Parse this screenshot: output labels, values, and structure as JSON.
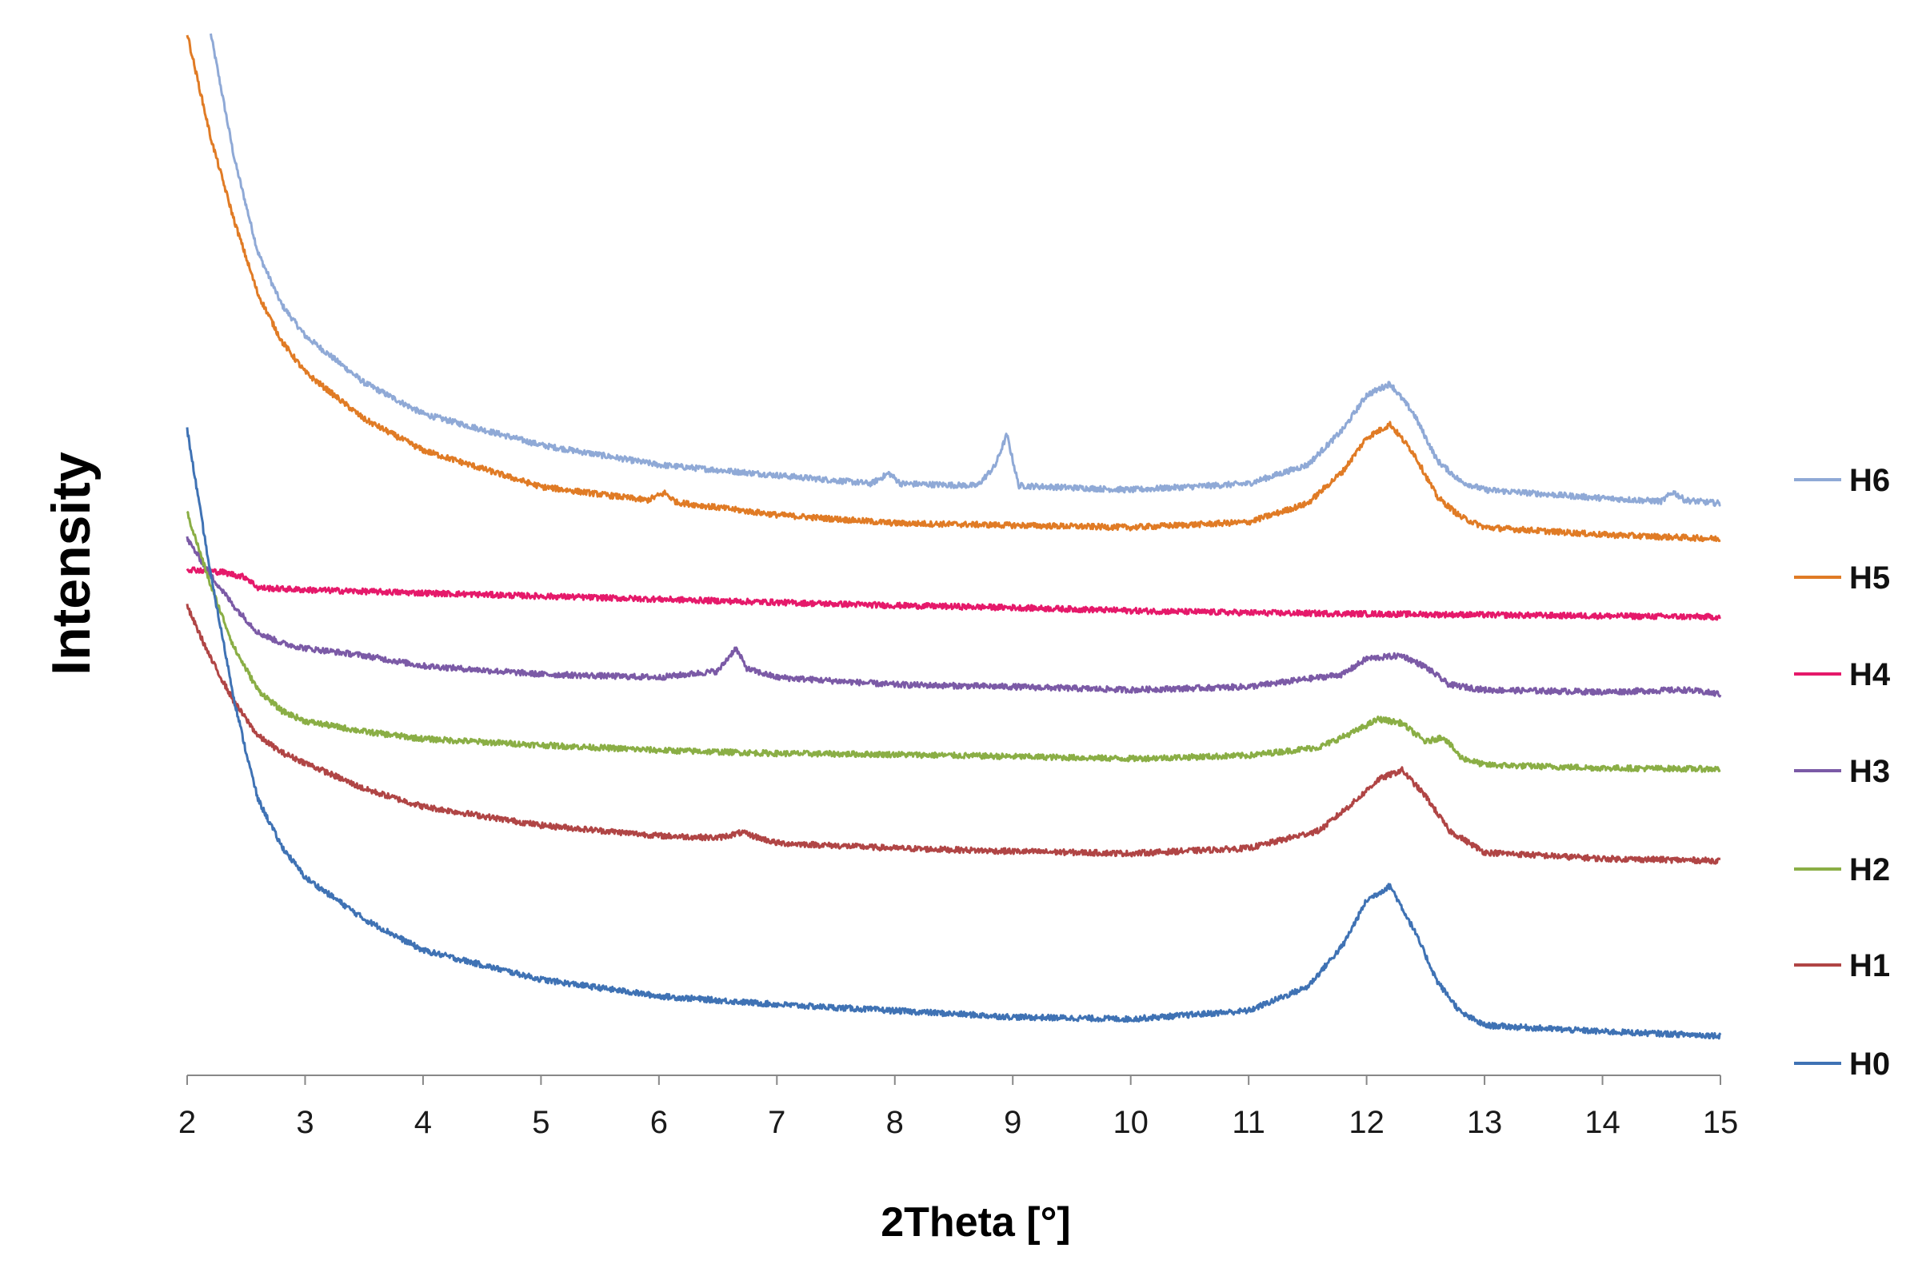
{
  "chart_data": {
    "type": "line",
    "title": "",
    "xlabel": "2Theta [°]",
    "ylabel": "Intensity",
    "xlim": [
      2,
      15
    ],
    "ylim": [
      0,
      100
    ],
    "x_ticks": [
      2,
      3,
      4,
      5,
      6,
      7,
      8,
      9,
      10,
      11,
      12,
      13,
      14,
      15
    ],
    "y_ticks_shown": false,
    "grid": false,
    "legend": "right",
    "series": [
      {
        "name": "H6",
        "color": "#8fa9d6",
        "points": [
          [
            2.2,
            100
          ],
          [
            2.4,
            88
          ],
          [
            2.6,
            79
          ],
          [
            2.8,
            74
          ],
          [
            3.0,
            71
          ],
          [
            3.5,
            66.5
          ],
          [
            4,
            63.5
          ],
          [
            5,
            60.5
          ],
          [
            6,
            58.6
          ],
          [
            7,
            57.6
          ],
          [
            7.8,
            56.8
          ],
          [
            7.95,
            57.8
          ],
          [
            8.05,
            56.8
          ],
          [
            8.7,
            56.6
          ],
          [
            8.85,
            58.5
          ],
          [
            8.95,
            61.5
          ],
          [
            9.05,
            56.6
          ],
          [
            10,
            56.2
          ],
          [
            11,
            56.8
          ],
          [
            11.5,
            58.6
          ],
          [
            11.8,
            62
          ],
          [
            12.0,
            65.3
          ],
          [
            12.2,
            66.4
          ],
          [
            12.4,
            63.5
          ],
          [
            12.6,
            59
          ],
          [
            12.8,
            57
          ],
          [
            13,
            56.2
          ],
          [
            14,
            55.4
          ],
          [
            14.5,
            55.1
          ],
          [
            14.6,
            56
          ],
          [
            14.7,
            55.2
          ],
          [
            15,
            54.9
          ]
        ]
      },
      {
        "name": "H5",
        "color": "#e07b25",
        "points": [
          [
            2.0,
            100
          ],
          [
            2.2,
            90
          ],
          [
            2.4,
            82
          ],
          [
            2.6,
            75
          ],
          [
            2.8,
            70.5
          ],
          [
            3.0,
            67.5
          ],
          [
            3.5,
            63
          ],
          [
            4,
            60
          ],
          [
            5,
            56.5
          ],
          [
            5.9,
            55.2
          ],
          [
            6.05,
            55.9
          ],
          [
            6.15,
            55
          ],
          [
            7,
            53.8
          ],
          [
            8,
            53
          ],
          [
            9,
            52.8
          ],
          [
            10,
            52.6
          ],
          [
            11,
            53.1
          ],
          [
            11.5,
            54.9
          ],
          [
            11.8,
            58
          ],
          [
            12.0,
            61.2
          ],
          [
            12.2,
            62.5
          ],
          [
            12.4,
            59.7
          ],
          [
            12.6,
            55.5
          ],
          [
            12.8,
            53.6
          ],
          [
            13,
            52.6
          ],
          [
            14,
            51.9
          ],
          [
            15,
            51.5
          ]
        ]
      },
      {
        "name": "H4",
        "color": "#e5196a",
        "points": [
          [
            2.0,
            48.6
          ],
          [
            2.3,
            48.3
          ],
          [
            2.5,
            47.8
          ],
          [
            2.6,
            46.8
          ],
          [
            3.0,
            46.6
          ],
          [
            4,
            46.3
          ],
          [
            5,
            46
          ],
          [
            6,
            45.7
          ],
          [
            7,
            45.4
          ],
          [
            8,
            45.1
          ],
          [
            9,
            44.9
          ],
          [
            10,
            44.6
          ],
          [
            11,
            44.4
          ],
          [
            12,
            44.3
          ],
          [
            13,
            44.2
          ],
          [
            14,
            44.1
          ],
          [
            15,
            44.0
          ]
        ]
      },
      {
        "name": "H3",
        "color": "#7b5aa6",
        "points": [
          [
            2.0,
            51.5
          ],
          [
            2.2,
            48
          ],
          [
            2.4,
            45
          ],
          [
            2.6,
            42.5
          ],
          [
            2.8,
            41.5
          ],
          [
            3.0,
            41
          ],
          [
            3.5,
            40.3
          ],
          [
            4,
            39.3
          ],
          [
            5,
            38.5
          ],
          [
            6,
            38.2
          ],
          [
            6.5,
            38.8
          ],
          [
            6.65,
            41
          ],
          [
            6.75,
            39
          ],
          [
            7.0,
            38.2
          ],
          [
            8,
            37.5
          ],
          [
            9,
            37.3
          ],
          [
            10,
            37
          ],
          [
            11,
            37.3
          ],
          [
            11.8,
            38.5
          ],
          [
            12.0,
            40
          ],
          [
            12.3,
            40.3
          ],
          [
            12.5,
            39.2
          ],
          [
            12.7,
            37.5
          ],
          [
            13,
            37
          ],
          [
            14,
            36.8
          ],
          [
            14.7,
            37
          ],
          [
            15,
            36.6
          ]
        ]
      },
      {
        "name": "H2",
        "color": "#8aae45",
        "points": [
          [
            2.0,
            54
          ],
          [
            2.2,
            47
          ],
          [
            2.4,
            41
          ],
          [
            2.6,
            37
          ],
          [
            2.8,
            35
          ],
          [
            3.0,
            34
          ],
          [
            3.5,
            33
          ],
          [
            4,
            32.3
          ],
          [
            5,
            31.7
          ],
          [
            6,
            31.2
          ],
          [
            7,
            30.9
          ],
          [
            8,
            30.8
          ],
          [
            9,
            30.6
          ],
          [
            10,
            30.4
          ],
          [
            11,
            30.7
          ],
          [
            11.6,
            31.5
          ],
          [
            11.9,
            33
          ],
          [
            12.1,
            34.2
          ],
          [
            12.3,
            33.8
          ],
          [
            12.5,
            32
          ],
          [
            12.65,
            32.5
          ],
          [
            12.8,
            30.5
          ],
          [
            13,
            29.8
          ],
          [
            14,
            29.5
          ],
          [
            15,
            29.4
          ]
        ]
      },
      {
        "name": "H1",
        "color": "#b04545",
        "points": [
          [
            2.0,
            45
          ],
          [
            2.2,
            40
          ],
          [
            2.4,
            35.8
          ],
          [
            2.6,
            32.6
          ],
          [
            2.8,
            31
          ],
          [
            3.0,
            30
          ],
          [
            3.5,
            27.5
          ],
          [
            4,
            25.8
          ],
          [
            5,
            24
          ],
          [
            6,
            23
          ],
          [
            6.5,
            22.8
          ],
          [
            6.7,
            23.3
          ],
          [
            7.0,
            22.3
          ],
          [
            8,
            21.8
          ],
          [
            9,
            21.5
          ],
          [
            10,
            21.3
          ],
          [
            11,
            21.8
          ],
          [
            11.6,
            23.5
          ],
          [
            11.9,
            26.3
          ],
          [
            12.1,
            28.4
          ],
          [
            12.3,
            29.3
          ],
          [
            12.5,
            26.8
          ],
          [
            12.7,
            23.5
          ],
          [
            13,
            21.4
          ],
          [
            14,
            20.8
          ],
          [
            15,
            20.6
          ]
        ]
      },
      {
        "name": "H0",
        "color": "#3f72b4",
        "points": [
          [
            2.0,
            62
          ],
          [
            2.1,
            55
          ],
          [
            2.2,
            48
          ],
          [
            2.3,
            42
          ],
          [
            2.4,
            36
          ],
          [
            2.5,
            31
          ],
          [
            2.6,
            26.5
          ],
          [
            2.8,
            22
          ],
          [
            3.0,
            19
          ],
          [
            3.5,
            15
          ],
          [
            4,
            12
          ],
          [
            5,
            9.2
          ],
          [
            6,
            7.6
          ],
          [
            7,
            6.8
          ],
          [
            8,
            6.2
          ],
          [
            9,
            5.6
          ],
          [
            10,
            5.4
          ],
          [
            11,
            6.2
          ],
          [
            11.5,
            8.5
          ],
          [
            11.8,
            12.5
          ],
          [
            12.0,
            16.8
          ],
          [
            12.2,
            18.2
          ],
          [
            12.4,
            14
          ],
          [
            12.6,
            9
          ],
          [
            12.8,
            6
          ],
          [
            13,
            4.8
          ],
          [
            14,
            4.2
          ],
          [
            15,
            3.8
          ]
        ]
      }
    ]
  }
}
